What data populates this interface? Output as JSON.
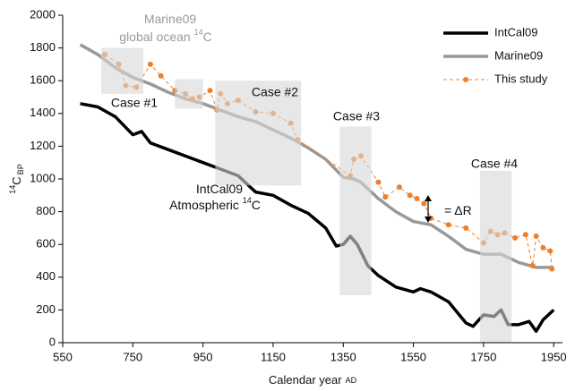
{
  "chart_data": {
    "type": "line",
    "x_label": {
      "text": "Calendar year",
      "suffix": "AD"
    },
    "y_label": {
      "sup": "14",
      "text": "C",
      "sub": "BP"
    },
    "xlim": [
      550,
      1975
    ],
    "ylim": [
      0,
      2000
    ],
    "xticks": [
      550,
      750,
      950,
      1150,
      1350,
      1550,
      1750,
      1950
    ],
    "yticks": [
      0,
      200,
      400,
      600,
      800,
      1000,
      1200,
      1400,
      1600,
      1800,
      2000
    ],
    "legend": "upper right",
    "series": [
      {
        "name": "IntCal09",
        "color": "#000000",
        "style": "solid",
        "x": [
          600,
          650,
          700,
          750,
          775,
          800,
          850,
          900,
          950,
          1000,
          1050,
          1100,
          1150,
          1200,
          1250,
          1300,
          1330,
          1350,
          1370,
          1390,
          1420,
          1450,
          1500,
          1550,
          1570,
          1600,
          1650,
          1700,
          1720,
          1750,
          1780,
          1800,
          1820,
          1850,
          1880,
          1900,
          1920,
          1950
        ],
        "values": [
          1460,
          1440,
          1380,
          1270,
          1290,
          1220,
          1180,
          1140,
          1100,
          1060,
          1020,
          920,
          900,
          840,
          790,
          700,
          590,
          600,
          650,
          600,
          470,
          410,
          340,
          310,
          330,
          310,
          250,
          120,
          100,
          170,
          160,
          200,
          110,
          110,
          130,
          70,
          140,
          200
        ]
      },
      {
        "name": "Marine09",
        "color": "#999999",
        "style": "solid",
        "x": [
          600,
          650,
          700,
          750,
          800,
          850,
          900,
          950,
          1000,
          1050,
          1100,
          1150,
          1200,
          1250,
          1300,
          1350,
          1380,
          1400,
          1450,
          1500,
          1550,
          1600,
          1650,
          1700,
          1750,
          1800,
          1850,
          1900,
          1950
        ],
        "values": [
          1820,
          1760,
          1680,
          1620,
          1580,
          1530,
          1490,
          1460,
          1420,
          1380,
          1350,
          1300,
          1250,
          1190,
          1120,
          1010,
          1000,
          980,
          880,
          800,
          740,
          720,
          650,
          570,
          540,
          540,
          490,
          460,
          460
        ]
      },
      {
        "name": "This study",
        "color": "#f07f2a",
        "style": "dashed",
        "x": [
          670,
          710,
          730,
          760,
          800,
          830,
          870,
          900,
          920,
          940,
          970,
          990,
          1000,
          1020,
          1050,
          1100,
          1150,
          1200,
          1220,
          1370,
          1380,
          1400,
          1450,
          1470,
          1510,
          1540,
          1560,
          1580,
          1600,
          1650,
          1700,
          1750,
          1770,
          1790,
          1810,
          1840,
          1870,
          1890,
          1900,
          1920,
          1940,
          1945
        ],
        "values": [
          1760,
          1700,
          1570,
          1560,
          1700,
          1630,
          1540,
          1520,
          1490,
          1500,
          1540,
          1420,
          1520,
          1460,
          1480,
          1410,
          1400,
          1340,
          1240,
          1020,
          1120,
          1140,
          980,
          890,
          950,
          900,
          880,
          850,
          760,
          720,
          700,
          610,
          680,
          660,
          670,
          640,
          660,
          470,
          650,
          580,
          560,
          450
        ]
      }
    ],
    "shaded_regions": [
      {
        "label": "Case #1",
        "x": [
          660,
          780
        ],
        "y": [
          1520,
          1800
        ]
      },
      {
        "x": [
          870,
          950
        ],
        "y": [
          1430,
          1610
        ]
      },
      {
        "label": "Case #2",
        "x": [
          985,
          1230
        ],
        "y": [
          960,
          1600
        ]
      },
      {
        "label": "Case #3",
        "x": [
          1340,
          1430
        ],
        "y": [
          290,
          1320
        ]
      },
      {
        "label": "Case #4",
        "x": [
          1740,
          1830
        ],
        "y": [
          0,
          1050
        ]
      }
    ],
    "annotations": [
      {
        "lines": [
          {
            "text": "Marine09"
          },
          {
            "text": "global ocean ",
            "sup": "14",
            "after": "C"
          }
        ],
        "color": "#999999"
      },
      {
        "lines": [
          {
            "text": "IntCal09"
          },
          {
            "text": "Atmospheric ",
            "sup": "14",
            "after": "C"
          }
        ],
        "color": "#111111"
      },
      {
        "lines": [
          {
            "text": "= ΔR"
          }
        ],
        "color": "#111111"
      }
    ]
  }
}
